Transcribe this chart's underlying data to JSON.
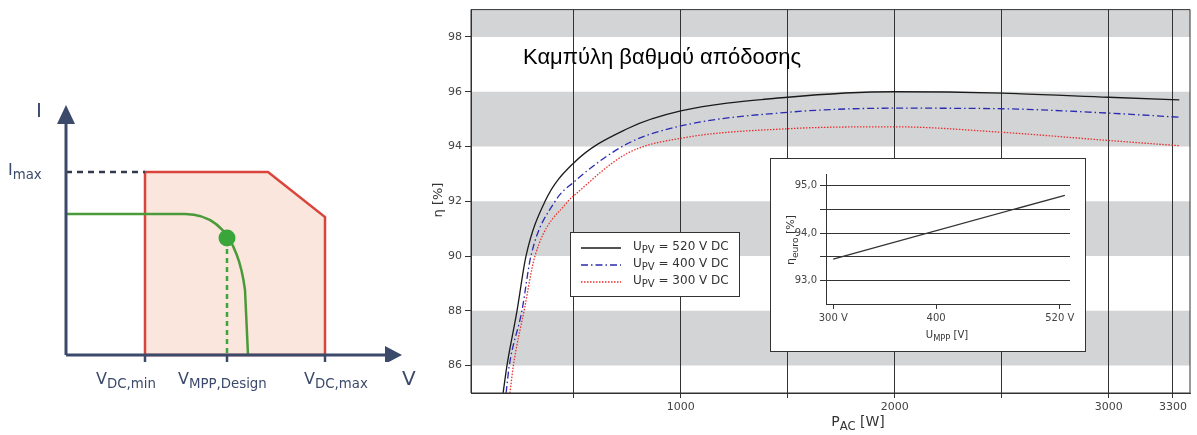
{
  "chart_data": [
    {
      "type": "other",
      "annotations": [
        "I",
        "I$_{max}$",
        "V",
        "V$_{DC,min}$",
        "V$_{MPP,Design}$",
        "V$_{DC,max}$"
      ]
    },
    {
      "type": "line",
      "title": "Καμπύλη βαθμού απόδοσης",
      "xlabel": "P$_{AC}$ [W]",
      "ylabel": "η [%]",
      "xlim": [
        20,
        3380
      ],
      "xticks": [
        {
          "value": 500,
          "label": null
        },
        1000,
        {
          "value": 1500,
          "label": null
        },
        2000,
        {
          "value": 2500,
          "label": null
        },
        3000,
        3300
      ],
      "ylim": [
        85,
        99
      ],
      "yticks": [
        86,
        88,
        90,
        92,
        94,
        96,
        98
      ],
      "grid": "x",
      "legend": "left",
      "bands": [
        {
          "axis": "y",
          "from": 98,
          "to": 99,
          "color": "#d3d4d6"
        },
        {
          "axis": "y",
          "from": 94,
          "to": 96,
          "color": "#d3d4d6"
        },
        {
          "axis": "y",
          "from": 90,
          "to": 92,
          "color": "#d3d4d6"
        },
        {
          "axis": "y",
          "from": 86,
          "to": 88,
          "color": "#d3d4d6"
        }
      ],
      "series": [
        {
          "name": "U$_{PV}$ = 520 V DC",
          "color": "#1a1a1a",
          "line_style": "solid",
          "x": [
            170,
            188,
            235,
            277,
            366,
            500,
            750,
            1000,
            1500,
            2000,
            2500,
            3000,
            3330
          ],
          "values": [
            85,
            86,
            88,
            90,
            92,
            93.4,
            94.65,
            95.3,
            95.8,
            96,
            95.95,
            95.8,
            95.7
          ]
        },
        {
          "name": "U$_{PV}$ = 400 V DC",
          "color": "#2b2bb0",
          "line_style": "dashed",
          "x": [
            184,
            199,
            258,
            300,
            413,
            500,
            750,
            1000,
            1500,
            2000,
            2500,
            3000,
            3330
          ],
          "values": [
            85,
            86,
            88,
            90,
            92,
            92.7,
            94.1,
            94.75,
            95.25,
            95.4,
            95.38,
            95.22,
            95.07
          ]
        },
        {
          "name": "U$_{PV}$ = 300 V DC",
          "color": "#e8312f",
          "line_style": "dotted",
          "x": [
            202,
            218,
            268,
            319,
            473,
            500,
            750,
            1000,
            1500,
            2000,
            2500,
            3000,
            3330
          ],
          "values": [
            85,
            86,
            88,
            90,
            92,
            92.2,
            93.75,
            94.3,
            94.65,
            94.72,
            94.52,
            94.22,
            94.03
          ]
        }
      ]
    },
    {
      "type": "line",
      "xlabel": "U$_{MPP}$ [V]",
      "ylabel": "η$_{euro}$ [%]",
      "xlim": [
        293,
        530
      ],
      "xticks": [
        {
          "value": 300,
          "label": "300 V"
        },
        400,
        {
          "value": 520,
          "label": "520 V"
        }
      ],
      "ylim": [
        92.5,
        95.25
      ],
      "yticks": [
        {
          "value": 93,
          "label": "93,0"
        },
        {
          "value": 93.5,
          "label": null
        },
        {
          "value": 94,
          "label": "94,0"
        },
        {
          "value": 94.5,
          "label": null
        },
        {
          "value": 95,
          "label": "95,0"
        }
      ],
      "grid": "y",
      "series": [
        {
          "color": "#333333",
          "x": [
            300,
            525
          ],
          "values": [
            93.45,
            94.8
          ]
        }
      ]
    }
  ]
}
